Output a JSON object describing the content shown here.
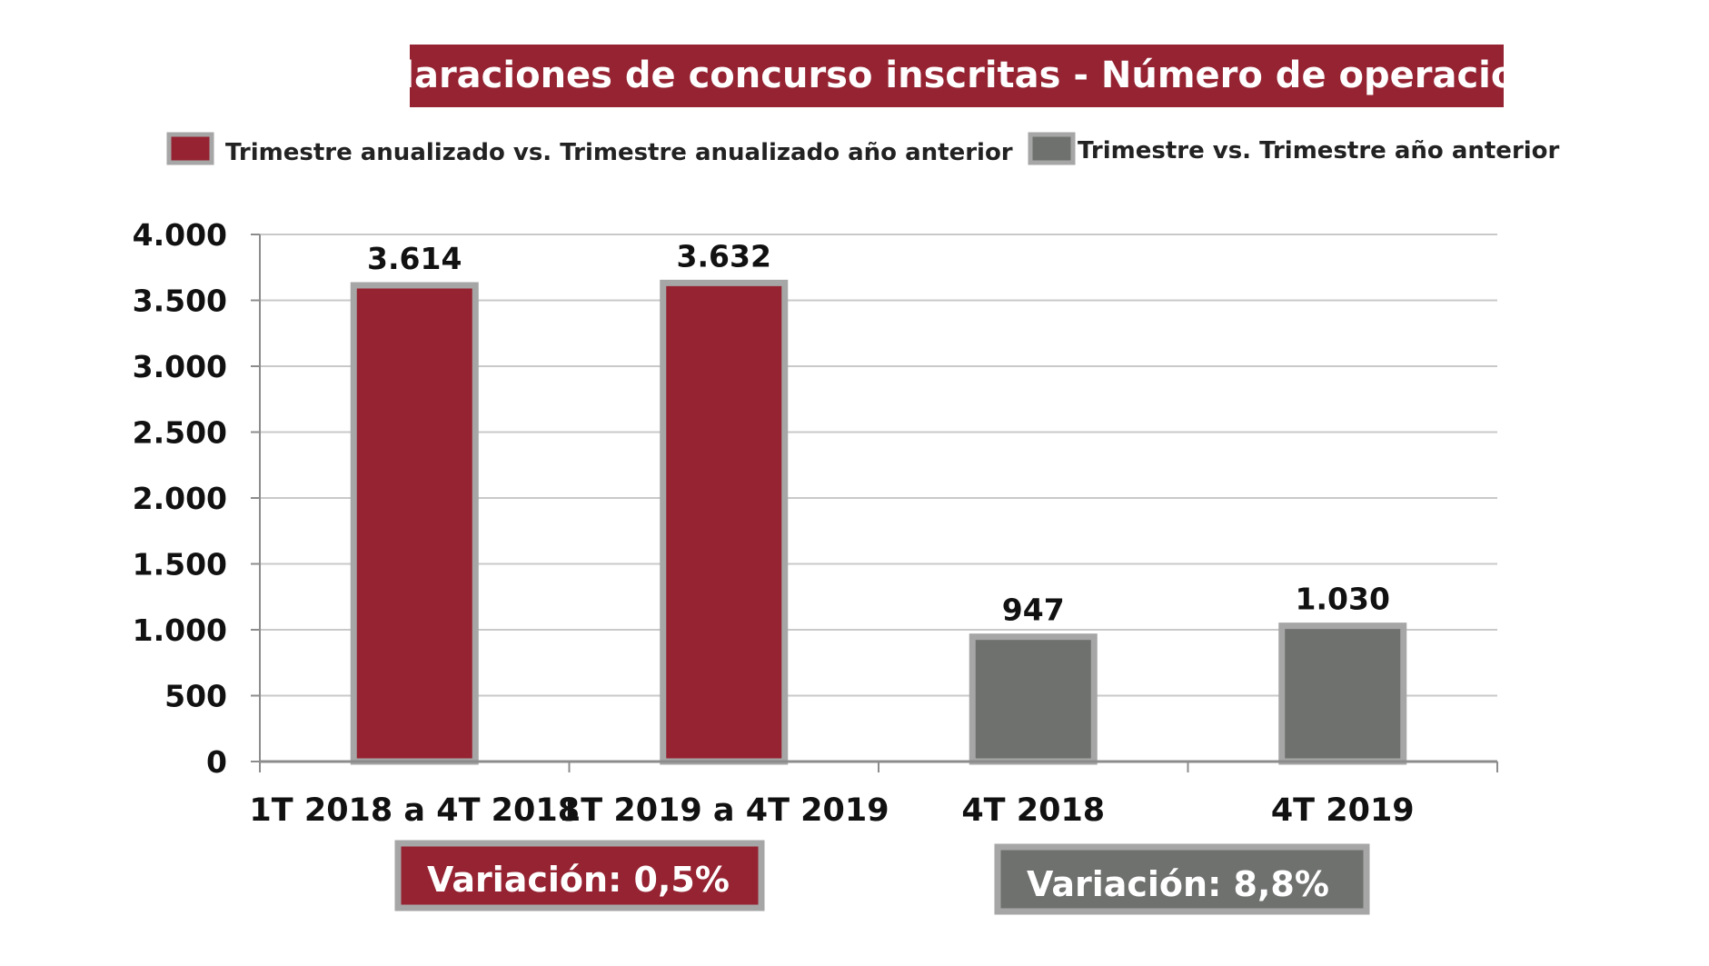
{
  "colors": {
    "title_bg": "#952332",
    "series_red": "#952332",
    "series_gray": "#6F716F",
    "bar_border": "#A6A6A6",
    "grid": "#C9C9C9",
    "axis": "#8C8C8C"
  },
  "legend": [
    {
      "label": "Trimestre anualizado vs. Trimestre anualizado año anterior",
      "color": "#952332"
    },
    {
      "label": "Trimestre vs. Trimestre año anterior",
      "color": "#6F716F"
    }
  ],
  "variations": [
    {
      "label": "Variación:  0,5%",
      "color": "#952332"
    },
    {
      "label": "Variación: 8,8%",
      "color": "#6F716F"
    }
  ],
  "chart_data": {
    "type": "bar",
    "title": "Declaraciones de concurso inscritas - Número de operaciones",
    "categories": [
      "1T 2018 a 4T 2018",
      "1T 2019 a 4T 2019",
      "4T 2018",
      "4T 2019"
    ],
    "values": [
      3614,
      3632,
      947,
      1030
    ],
    "value_labels": [
      "3.614",
      "3.632",
      "947",
      "1.030"
    ],
    "bar_colors": [
      "#952332",
      "#952332",
      "#6F716F",
      "#6F716F"
    ],
    "series": [
      {
        "name": "Trimestre anualizado vs. Trimestre anualizado año anterior",
        "values": [
          3614,
          3632,
          null,
          null
        ]
      },
      {
        "name": "Trimestre vs. Trimestre año anterior",
        "values": [
          null,
          null,
          947,
          1030
        ]
      }
    ],
    "ylim": [
      0,
      4000
    ],
    "yticks": [
      0,
      500,
      1000,
      1500,
      2000,
      2500,
      3000,
      3500,
      4000
    ],
    "ytick_labels": [
      "0",
      "500",
      "1.000",
      "1.500",
      "2.000",
      "2.500",
      "3.000",
      "3.500",
      "4.000"
    ],
    "grid": true,
    "legend_position": "top",
    "xlabel": "",
    "ylabel": ""
  }
}
